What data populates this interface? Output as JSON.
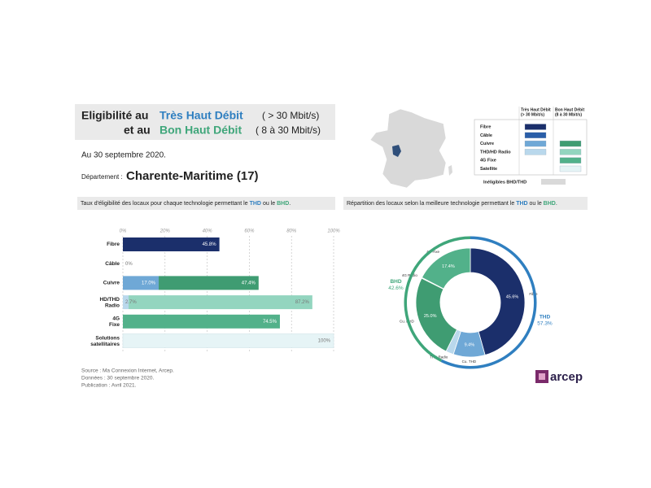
{
  "header": {
    "line1": [
      "Eligibilité au",
      "Très Haut Débit",
      "( > 30 Mbit/s)"
    ],
    "line2": [
      "et au",
      "Bon Haut Débit",
      "( 8 à 30 Mbit/s)"
    ],
    "date": "Au 30 septembre 2020.",
    "dept_label": "Département :",
    "dept": "Charente-Maritime (17)"
  },
  "legend": {
    "headers": [
      [
        "Très Haut Débit",
        "(> 30 Mbit/s)"
      ],
      [
        "Bon Haut Débit",
        "(8 à 30 Mbit/s)"
      ]
    ],
    "rows": [
      {
        "label": "Fibre",
        "thd": "#1b2f6b",
        "bhd": null
      },
      {
        "label": "Câble",
        "thd": "#2a5ea8",
        "bhd": null
      },
      {
        "label": "Cuivre",
        "thd": "#6fa8d6",
        "bhd": "#3f9c72"
      },
      {
        "label": "THD/HD Radio",
        "thd": "#b9d8ec",
        "bhd": "#93d5bf"
      },
      {
        "label": "4G Fixe",
        "thd": null,
        "bhd": "#52b18a"
      },
      {
        "label": "Satellite",
        "thd": null,
        "bhd": "#e6f4f6"
      }
    ],
    "ineligible": "Inéligibles BHD/THD",
    "ineligible_color": "#d9d9d9"
  },
  "sections": [
    [
      "Taux d'éligibilité des locaux pour chaque technologie permettant le",
      "THD",
      "ou le",
      "BHD",
      "."
    ],
    [
      "Répartition des locaux selon la meilleure technologie permettant le",
      "THD",
      "ou le",
      "BHD",
      "."
    ]
  ],
  "chart_data": [
    {
      "type": "bar",
      "orientation": "horizontal",
      "stacked": true,
      "categories": [
        "Fibre",
        "Câble",
        "Cuivre",
        "HD/THD Radio",
        "4G Fixe",
        "Solutions satellitaires"
      ],
      "series": [
        {
          "colors": [
            "#1b2f6b",
            "#2a5ea8",
            "#6fa8d6",
            "#b9d8ec",
            null,
            null
          ],
          "values": [
            45.8,
            0,
            17.0,
            2.7,
            null,
            null
          ],
          "value_labels": [
            "45.8%",
            "0%",
            "17.0%",
            "2.7%",
            null,
            null
          ]
        },
        {
          "colors": [
            null,
            null,
            "#3f9c72",
            "#93d5bf",
            "#52b18a",
            "#e6f4f6"
          ],
          "values": [
            null,
            null,
            47.4,
            87.2,
            74.5,
            100
          ],
          "value_labels": [
            null,
            null,
            "47.4%",
            "87.2%",
            "74.5%",
            "100%"
          ]
        }
      ],
      "xlim": [
        0,
        100
      ],
      "xticks": [
        {
          "value": 0,
          "label": "0%"
        },
        {
          "value": 20,
          "label": "20%"
        },
        {
          "value": 40,
          "label": "40%"
        },
        {
          "value": 60,
          "label": "60%"
        },
        {
          "value": 80,
          "label": "80%"
        },
        {
          "value": 100,
          "label": "100%"
        }
      ],
      "grid": true
    },
    {
      "type": "pie",
      "donut": true,
      "categories": [
        "Fibre",
        "Cu. THD",
        "THD Radio",
        "Cu. BHD",
        "4G Radio",
        "4G Fixe"
      ],
      "values": [
        45.6,
        9.4,
        2.3,
        25.0,
        0.2,
        17.4
      ],
      "value_labels": [
        "45.6%",
        "9.4%",
        null,
        "25.0%",
        null,
        "17.4%"
      ],
      "colors": [
        "#1b2f6b",
        "#6fa8d6",
        "#b9d8ec",
        "#3f9c72",
        "#bfcfcf",
        "#52b18a"
      ],
      "outer": {
        "categories": [
          "THD",
          "BHD"
        ],
        "values": [
          57.3,
          42.6
        ],
        "value_labels": [
          "57.3%",
          "42.6%"
        ],
        "colors": [
          "#2f7fc0",
          "#3fa67a"
        ]
      }
    }
  ],
  "source": [
    "Source : Ma Connexion Internet, Arcep.",
    "Données : 30 septembre 2020.",
    "Publication : Avril 2021."
  ],
  "logo": "arcep"
}
